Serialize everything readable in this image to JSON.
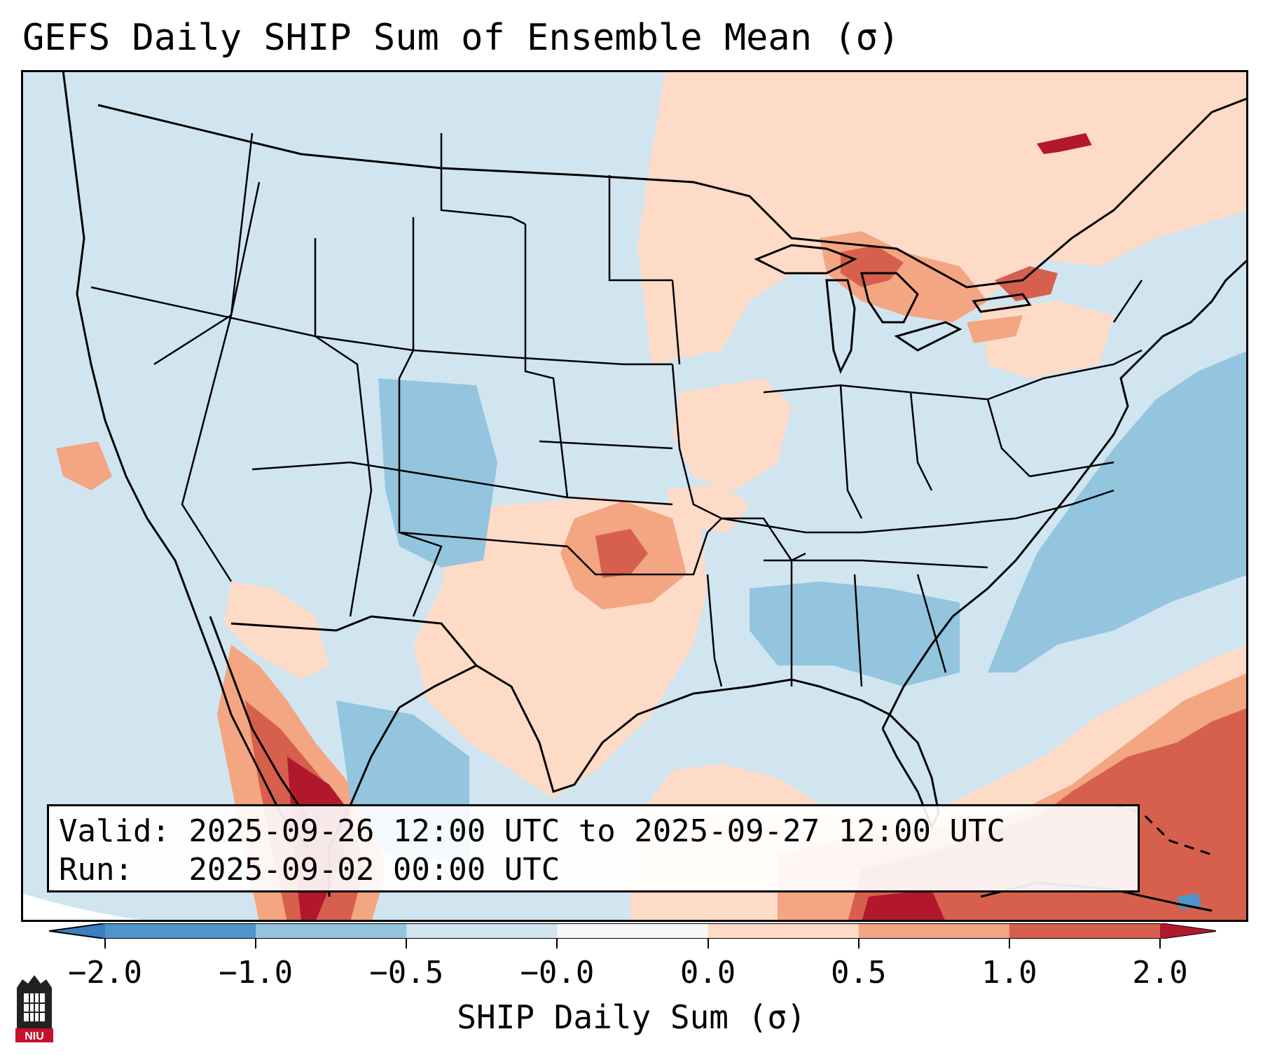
{
  "title": "GEFS Daily SHIP Sum of Ensemble Mean (σ)",
  "valid_line": "Valid: 2025-09-26 12:00 UTC to 2025-09-27 12:00 UTC",
  "run_line": "Run:   2025-09-02 00:00 UTC",
  "colorbar": {
    "label": "SHIP Daily Sum (σ)",
    "ticks": [
      "−2.0",
      "−1.0",
      "−0.5",
      "−0.0",
      "0.0",
      "0.5",
      "1.0",
      "2.0"
    ],
    "bins": [
      {
        "range": "< -2.0",
        "color": "#3a7fc1"
      },
      {
        "range": "-2.0 to -1.0",
        "color": "#4f95c9"
      },
      {
        "range": "-1.0 to -0.5",
        "color": "#93c5df"
      },
      {
        "range": "-0.5 to 0.0",
        "color": "#d1e5f0"
      },
      {
        "range": "0.0",
        "color": "#f7f7f7"
      },
      {
        "range": "0.0 to 0.5",
        "color": "#fddbc7"
      },
      {
        "range": "0.5 to 1.0",
        "color": "#f4a582"
      },
      {
        "range": "1.0 to 2.0",
        "color": "#d6604d"
      },
      {
        "range": "> 2.0",
        "color": "#b2182b"
      }
    ]
  },
  "logo": {
    "text": "NIU",
    "color": "#c8102e"
  }
}
